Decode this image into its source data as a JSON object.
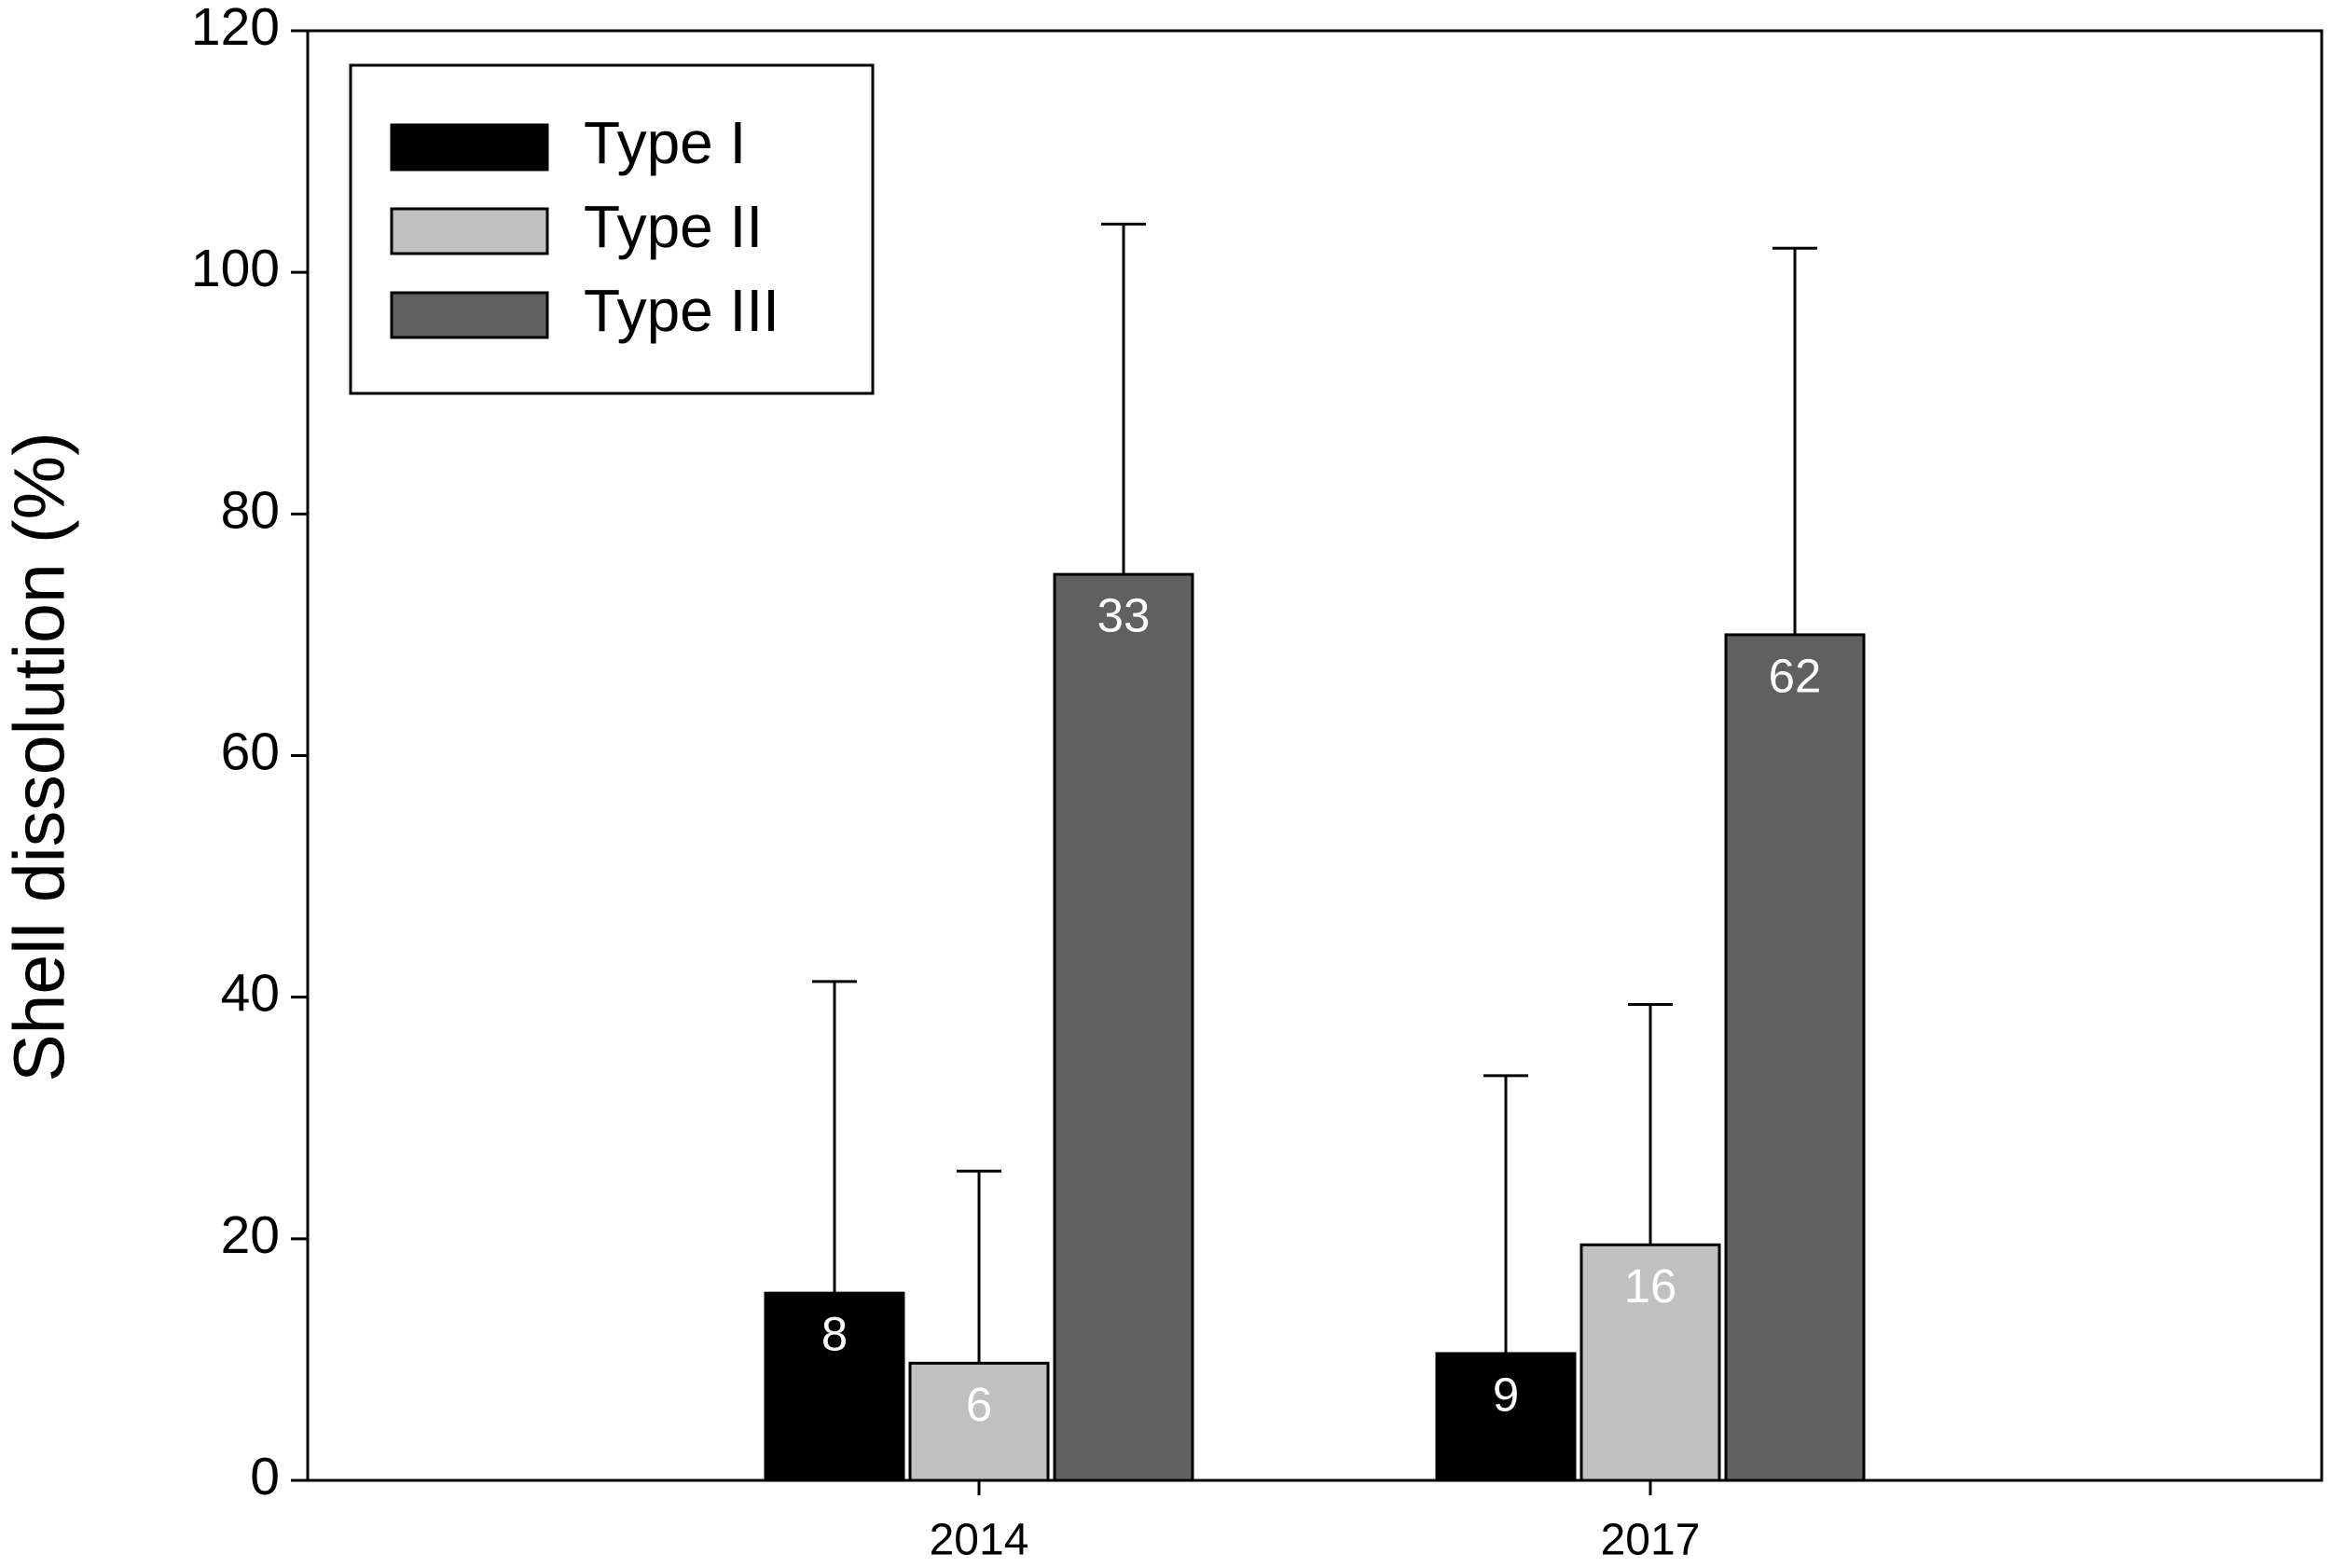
{
  "chart_data": {
    "type": "bar",
    "y_label": "Shell dissolution (%)",
    "categories": [
      "2014",
      "2017"
    ],
    "series": [
      {
        "name": "Type I",
        "color": "#000000",
        "values": [
          15.5,
          10.5
        ],
        "errors": [
          25.8,
          23
        ],
        "bar_labels": [
          8,
          9
        ]
      },
      {
        "name": "Type II",
        "color": "#c0c0c0",
        "values": [
          9.7,
          19.5
        ],
        "errors": [
          15.9,
          19.9
        ],
        "bar_labels": [
          6,
          16
        ]
      },
      {
        "name": "Type III",
        "color": "#606060",
        "values": [
          75,
          70
        ],
        "errors": [
          29,
          32
        ],
        "bar_labels": [
          33,
          62
        ]
      }
    ],
    "ylim": [
      0,
      120
    ],
    "yticks": [
      0,
      20,
      40,
      60,
      80,
      100,
      120
    ],
    "grid": false,
    "legend": "upper left"
  }
}
